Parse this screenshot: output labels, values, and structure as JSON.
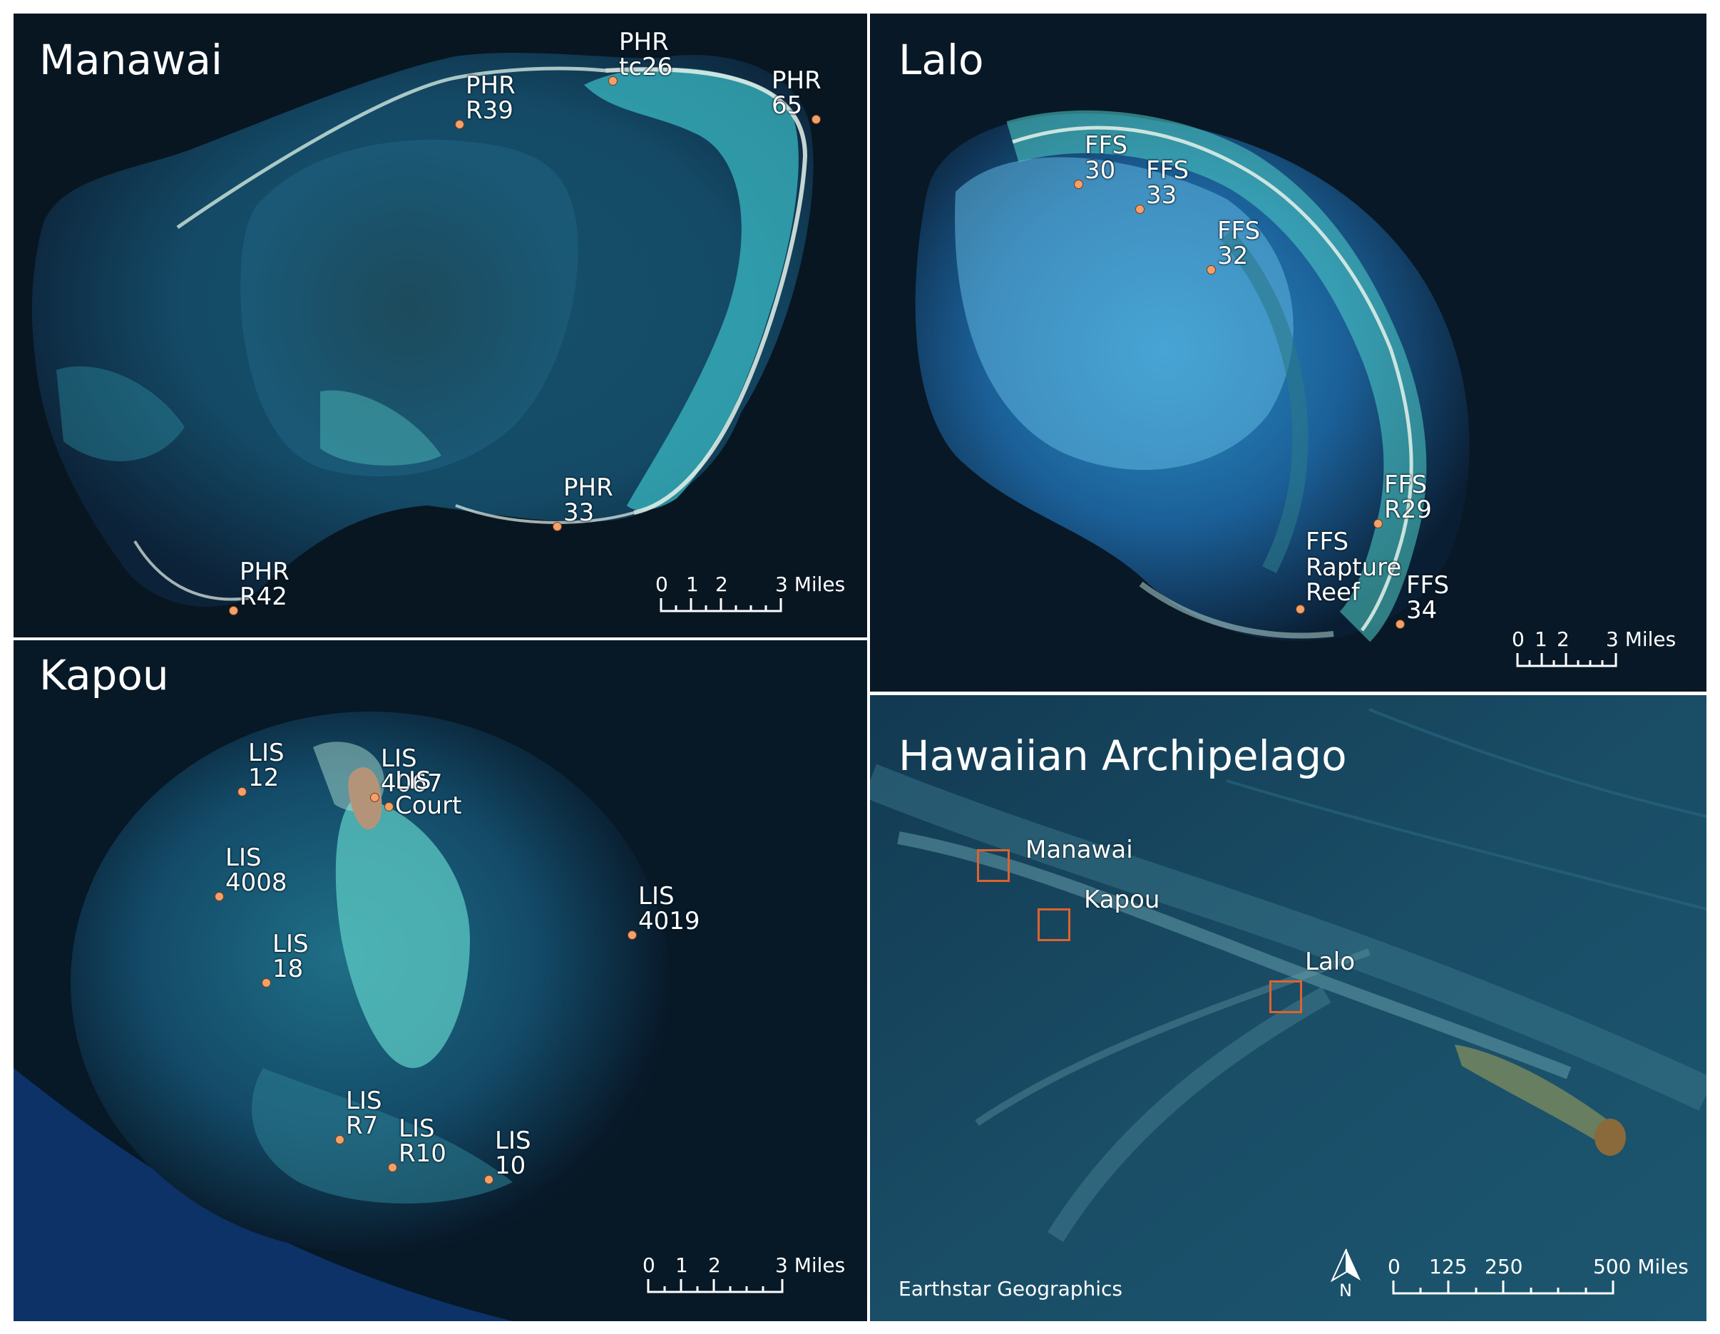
{
  "accent_colors": {
    "site_marker": "#f4a06a",
    "inset_box": "#e0622a",
    "text": "#ffffff"
  },
  "panels": {
    "manawai": {
      "title": "Manawai",
      "sites": [
        "PHR tc26",
        "PHR R39",
        "PHR 65",
        "PHR 33",
        "PHR R42"
      ],
      "scale": {
        "ticks": [
          "0",
          "1",
          "2",
          "3 Miles"
        ]
      }
    },
    "lalo": {
      "title": "Lalo",
      "sites": [
        "FFS 30",
        "FFS 33",
        "FFS 32",
        "FFS R29",
        "FFS\nRapture\nReef",
        "FFS 34"
      ],
      "scale": {
        "ticks": [
          "0",
          "1",
          "2",
          "3 Miles"
        ]
      }
    },
    "kapou": {
      "title": "Kapou",
      "sites": [
        "LIS 12",
        "LIS 4067",
        "LIS Court",
        "LIS 4008",
        "LIS 4019",
        "LIS 18",
        "LIS R7",
        "LIS R10",
        "LIS 10"
      ],
      "scale": {
        "ticks": [
          "0",
          "1",
          "2",
          "3 Miles"
        ]
      }
    },
    "archipelago": {
      "title": "Hawaiian Archipelago",
      "islands": [
        "Manawai",
        "Kapou",
        "Lalo"
      ],
      "north_label": "N",
      "credit": "Earthstar Geographics",
      "scale": {
        "ticks": [
          "0",
          "125",
          "250",
          "500 Miles"
        ]
      }
    }
  }
}
